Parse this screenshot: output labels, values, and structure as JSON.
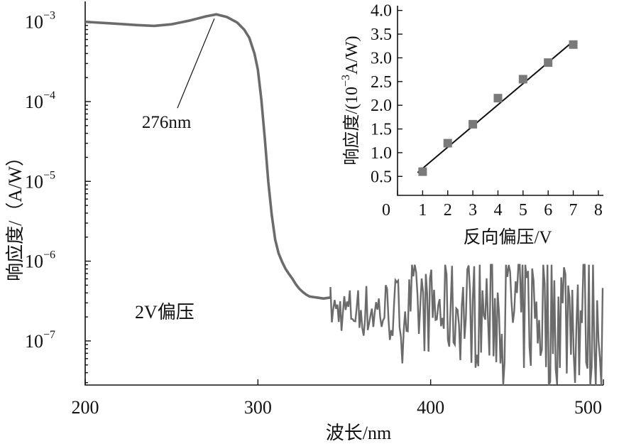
{
  "chart_data": [
    {
      "type": "line",
      "xlabel": "波长/nm",
      "ylabel": "响应度/（A/W）",
      "xlim": [
        200,
        500
      ],
      "ylim": [
        2.8e-08,
        0.0018
      ],
      "yscale": "log",
      "x_ticks": [
        200,
        300,
        400,
        500
      ],
      "x_tick_labels": [
        "200",
        "300",
        "400",
        "500"
      ],
      "y_ticks": [
        1e-07,
        1e-06,
        1e-05,
        0.0001,
        0.001
      ],
      "y_tick_labels": [
        {
          "base": "10",
          "exp": "−7"
        },
        {
          "base": "10",
          "exp": "−6"
        },
        {
          "base": "10",
          "exp": "−5"
        },
        {
          "base": "10",
          "exp": "−4"
        },
        {
          "base": "10",
          "exp": "−3"
        }
      ],
      "grid": false,
      "series": [
        {
          "x": [
            200,
            210,
            220,
            230,
            240,
            250,
            260,
            270,
            276,
            282,
            288,
            292,
            295,
            298,
            300,
            302,
            304,
            306,
            308,
            310,
            312,
            314,
            316,
            318,
            320,
            322,
            324,
            326,
            328,
            330,
            334,
            338,
            342
          ],
          "y": [
            0.001,
            0.00097,
            0.00094,
            0.00091,
            0.00089,
            0.00093,
            0.00103,
            0.00117,
            0.00124,
            0.00115,
            0.00098,
            0.0008,
            0.00063,
            0.0004,
            0.00025,
            0.000105,
            3.4e-05,
            1e-05,
            3.8e-06,
            1.85e-06,
            1.25e-06,
            9.8e-07,
            8e-07,
            6.9e-07,
            6e-07,
            5.1e-07,
            4.5e-07,
            4.1e-07,
            3.8e-07,
            3.6e-07,
            3.5e-07,
            3.4e-07,
            3.5e-07
          ],
          "noise_region": {
            "x_from": 342,
            "x_to": 500,
            "y_min": 2.8e-08,
            "y_max": 9e-07,
            "y_center": 2.4e-07
          }
        }
      ],
      "annotations": [
        {
          "text": "276nm",
          "x": 276,
          "y": 0.00124
        },
        {
          "text": "2V偏压"
        }
      ]
    },
    {
      "type": "scatter",
      "xlabel": "反向偏压/V",
      "ylabel": {
        "prefix": "响应度/(10",
        "exp": "−3",
        "suffix": "A/W)"
      },
      "xlim": [
        0,
        8.2
      ],
      "ylim": [
        0.1,
        4.1
      ],
      "x_ticks": [
        0,
        1,
        2,
        3,
        4,
        5,
        6,
        7,
        8
      ],
      "x_tick_labels": [
        "0",
        "1",
        "2",
        "3",
        "4",
        "5",
        "6",
        "7",
        "8"
      ],
      "y_ticks": [
        0.5,
        1.0,
        1.5,
        2.0,
        2.5,
        3.0,
        3.5,
        4.0
      ],
      "y_tick_labels": [
        "0.5",
        "1.0",
        "1.5",
        "2.0",
        "2.5",
        "3.0",
        "3.5",
        "4.0"
      ],
      "grid": false,
      "series": [
        {
          "x": [
            1,
            2,
            3,
            4,
            5,
            6,
            7
          ],
          "y": [
            0.6,
            1.2,
            1.6,
            2.15,
            2.55,
            2.9,
            3.28
          ]
        }
      ],
      "fit_line": {
        "x": [
          0.8,
          7.0
        ],
        "y": [
          0.58,
          3.35
        ]
      }
    }
  ],
  "colors": {
    "curve": "#6b6b6b",
    "marker": "#7a7a7a",
    "axis": "#111111"
  }
}
